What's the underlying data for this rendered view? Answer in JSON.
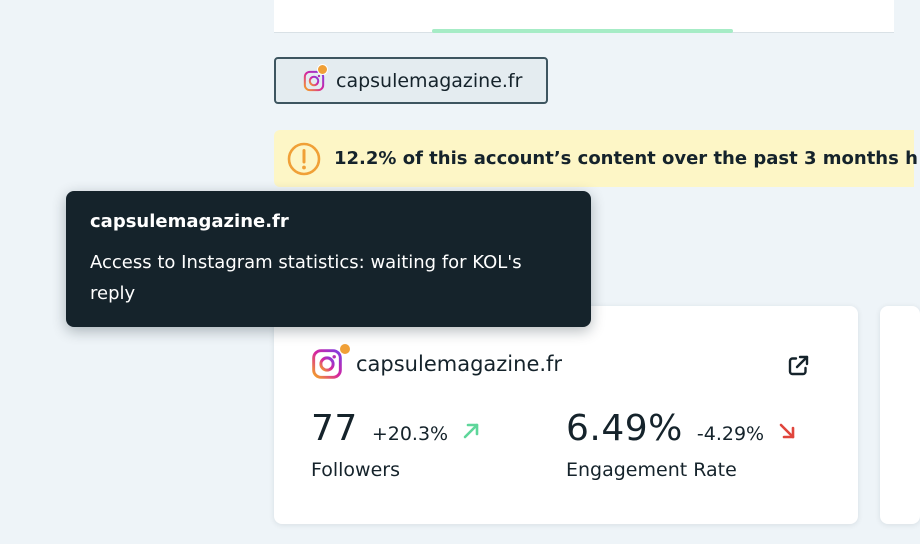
{
  "account": {
    "handle": "capsulemagazine.fr",
    "platform_icon": "instagram-icon",
    "status_dot_color": "#f0a037"
  },
  "warning": {
    "icon": "alert-circle-icon",
    "text": "12.2% of this account’s content over the past 3 months h",
    "icon_color": "#f0a037"
  },
  "tooltip": {
    "title": "capsulemagazine.fr",
    "text": "Access to Instagram statistics: waiting for KOL's reply"
  },
  "card": {
    "handle": "capsulemagazine.fr",
    "external_link_icon": "external-link-icon",
    "metrics": [
      {
        "value": "77",
        "change": "+20.3%",
        "trend": "up",
        "label": "Followers",
        "trend_color": "#5ed69a"
      },
      {
        "value": "6.49%",
        "change": "-4.29%",
        "trend": "down",
        "label": "Engagement Rate",
        "trend_color": "#e0453c"
      }
    ]
  },
  "colors": {
    "background": "#eef4f8",
    "tab_indicator": "#a6ecc6",
    "warning_background": "#fdf6c6",
    "tooltip_background": "#15232b",
    "instagram": "#c13584"
  }
}
